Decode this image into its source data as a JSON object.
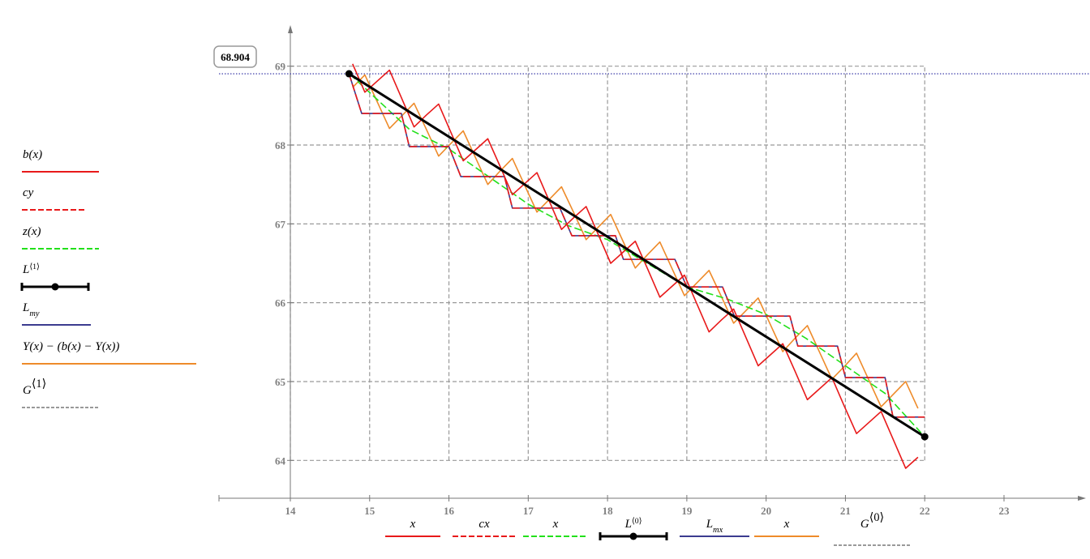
{
  "chart_data": {
    "type": "line",
    "xlim": [
      13.1,
      23.89
    ],
    "ylim": [
      63.52,
      69.48
    ],
    "xticks": [
      14,
      15,
      16,
      17,
      18,
      19,
      20,
      21,
      22,
      23
    ],
    "yticks": [
      64,
      65,
      66,
      67,
      68,
      69
    ],
    "cursor": 68.904,
    "series": [
      {
        "name": "b(x)",
        "x_name": "x",
        "color": "#e8191a",
        "dash": "solid",
        "x": [
          14.785,
          14.94,
          15.095,
          15.25,
          15.405,
          15.56,
          15.715,
          15.87,
          16.025,
          16.18,
          16.335,
          16.49,
          16.645,
          16.8,
          16.955,
          17.11,
          17.265,
          17.42,
          17.575,
          17.73,
          17.885,
          18.04,
          18.195,
          18.35,
          18.505,
          18.66,
          18.815,
          18.97,
          19.125,
          19.28,
          19.435,
          19.59,
          19.745,
          19.9,
          20.055,
          20.21,
          20.365,
          20.52,
          20.675,
          20.83,
          20.985,
          21.14,
          21.295,
          21.45,
          21.605,
          21.76,
          21.915
        ],
        "y": [
          69.03,
          68.67,
          68.81,
          68.95,
          68.59,
          68.23,
          68.38,
          68.52,
          68.16,
          67.8,
          67.94,
          68.08,
          67.73,
          67.37,
          67.51,
          67.65,
          67.29,
          66.93,
          67.08,
          67.22,
          66.86,
          66.5,
          66.64,
          66.78,
          66.43,
          66.07,
          66.21,
          66.35,
          65.99,
          65.63,
          65.78,
          65.92,
          65.56,
          65.2,
          65.34,
          65.48,
          65.13,
          64.77,
          64.91,
          65.05,
          64.69,
          64.34,
          64.48,
          64.62,
          64.26,
          63.9,
          64.04
        ]
      },
      {
        "name": "cy",
        "x_name": "cx",
        "color": "#e8191a",
        "dash": "dashed",
        "x": [
          14.74,
          14.9,
          15.4,
          15.5,
          16.0,
          16.15,
          16.7,
          16.8,
          17.4,
          17.55,
          18.1,
          18.2,
          18.85,
          19.0,
          19.45,
          19.6,
          20.3,
          20.4,
          20.9,
          21.0,
          21.5,
          21.6,
          22.0
        ],
        "y": [
          68.904,
          68.4,
          68.4,
          67.98,
          67.98,
          67.6,
          67.6,
          67.2,
          67.2,
          66.85,
          66.85,
          66.55,
          66.55,
          66.2,
          66.2,
          65.83,
          65.83,
          65.45,
          65.45,
          65.05,
          65.05,
          64.55,
          64.55
        ]
      },
      {
        "name": "z(x)",
        "x_name": "x",
        "color": "#22e01a",
        "dash": "dashed",
        "x": [
          14.75,
          15.5,
          16,
          16.5,
          17,
          17.5,
          18,
          18.5,
          19,
          19.5,
          20,
          20.5,
          21,
          21.5,
          22
        ],
        "y": [
          68.9,
          68.2,
          67.95,
          67.6,
          67.25,
          66.98,
          66.8,
          66.5,
          66.2,
          66.05,
          65.85,
          65.55,
          65.2,
          64.85,
          64.3
        ]
      },
      {
        "name": "L",
        "sup": "⟨1⟩",
        "x_name": "L",
        "x_sup": "⟨0⟩",
        "color": "#000000",
        "dash": "solid",
        "markers": true,
        "x": [
          14.74,
          22
        ],
        "y": [
          68.904,
          64.3
        ]
      },
      {
        "name": "L",
        "sub": "my",
        "x_name": "L",
        "x_sub": "mx",
        "color": "#3b3b8f",
        "dash": "solid",
        "x": [
          14.74,
          14.9,
          15.4,
          15.5,
          16.0,
          16.15,
          16.7,
          16.8,
          17.4,
          17.55,
          18.1,
          18.2,
          18.85,
          19.0,
          19.45,
          19.6,
          20.3,
          20.4,
          20.9,
          21.0,
          21.5,
          21.6,
          22.0
        ],
        "y": [
          68.904,
          68.4,
          68.4,
          67.98,
          67.98,
          67.6,
          67.6,
          67.2,
          67.2,
          66.85,
          66.85,
          66.55,
          66.55,
          66.2,
          66.2,
          65.83,
          65.83,
          65.45,
          65.45,
          65.05,
          65.05,
          64.55,
          64.55
        ]
      },
      {
        "name": "Y(x) − (b(x) − Y(x))",
        "x_name": "x",
        "color": "#ee8b2a",
        "dash": "solid",
        "x": [
          14.785,
          14.94,
          15.095,
          15.25,
          15.405,
          15.56,
          15.715,
          15.87,
          16.025,
          16.18,
          16.335,
          16.49,
          16.645,
          16.8,
          16.955,
          17.11,
          17.265,
          17.42,
          17.575,
          17.73,
          17.885,
          18.04,
          18.195,
          18.35,
          18.505,
          18.66,
          18.815,
          18.97,
          19.125,
          19.28,
          19.435,
          19.59,
          19.745,
          19.9,
          20.055,
          20.21,
          20.365,
          20.52,
          20.675,
          20.83,
          20.985,
          21.14,
          21.295,
          21.45,
          21.605,
          21.76,
          21.915
        ],
        "y": [
          68.73,
          68.89,
          68.55,
          68.21,
          68.37,
          68.53,
          68.2,
          67.86,
          68.02,
          68.18,
          67.84,
          67.5,
          67.67,
          67.83,
          67.49,
          67.15,
          67.31,
          67.47,
          67.14,
          66.8,
          66.96,
          67.12,
          66.78,
          66.44,
          66.61,
          66.77,
          66.43,
          66.09,
          66.25,
          66.41,
          66.08,
          65.74,
          65.9,
          66.06,
          65.72,
          65.38,
          65.55,
          65.71,
          65.37,
          65.03,
          65.19,
          65.36,
          65.02,
          64.68,
          64.84,
          65.0,
          64.66
        ]
      },
      {
        "name": "G",
        "sup": "⟨1⟩",
        "x_name": "G",
        "x_sup": "⟨0⟩",
        "color": "#999999",
        "dash": "dashed",
        "grid": true,
        "x": [
          14,
          22
        ],
        "y": [
          64,
          69
        ]
      }
    ]
  }
}
